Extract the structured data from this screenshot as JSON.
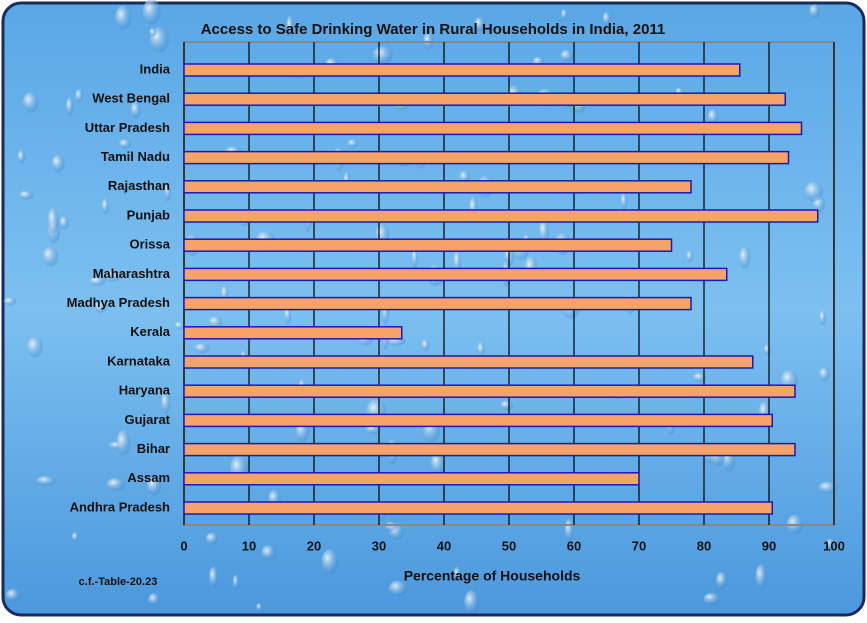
{
  "chart_data": {
    "type": "bar",
    "orientation": "horizontal",
    "title": "Access to Safe Drinking Water in Rural Households in India, 2011",
    "x_label": "Percentage of Households",
    "annotation": "c.f.-Table-20.23",
    "categories": [
      "India",
      "West Bengal",
      "Uttar Pradesh",
      "Tamil Nadu",
      "Rajasthan",
      "Punjab",
      "Orissa",
      "Maharashtra",
      "Madhya Pradesh",
      "Kerala",
      "Karnataka",
      "Haryana",
      "Gujarat",
      "Bihar",
      "Assam",
      "Andhra Pradesh"
    ],
    "values": [
      85.5,
      92.5,
      95,
      93,
      78,
      97.5,
      75,
      83.5,
      78,
      33.5,
      87.5,
      94,
      90.5,
      94,
      70,
      90.5
    ],
    "color": "#f6a36a",
    "edge_color": "#1a1ab8",
    "xlim": [
      0,
      100
    ],
    "xticks": [
      0,
      10,
      20,
      30,
      40,
      50,
      60,
      70,
      80,
      90,
      100
    ],
    "grid": true
  }
}
